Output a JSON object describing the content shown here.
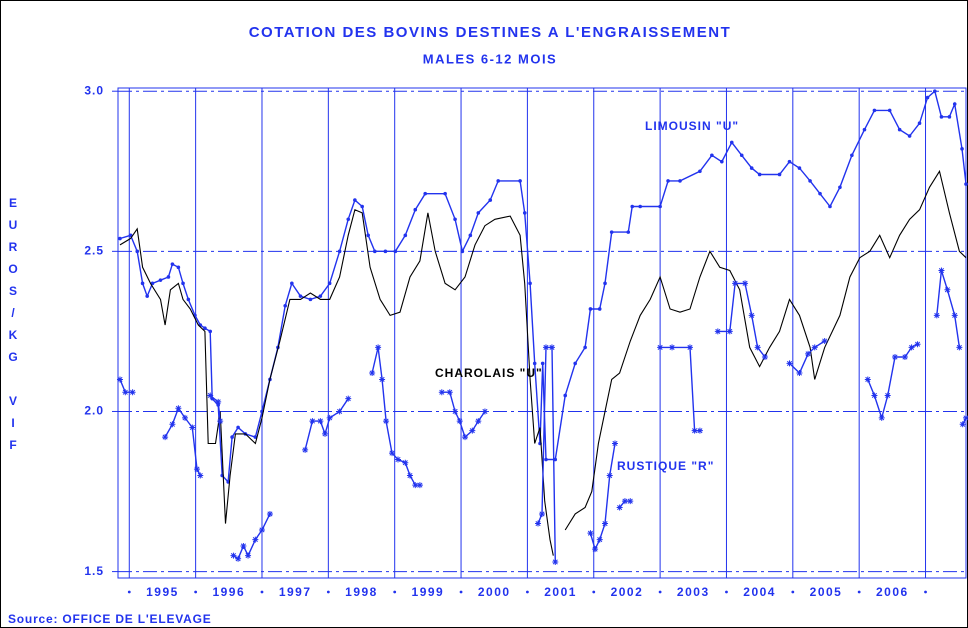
{
  "chart_data": {
    "type": "line",
    "title": "COTATION DES BOVINS DESTINES A L'ENGRAISSEMENT",
    "subtitle": "MALES 6-12 MOIS",
    "y_label": "EUROS/KG VIF",
    "source": "Source: OFFICE DE L'ELEVAGE",
    "xlim": [
      1994.83,
      2007.61
    ],
    "ylim": [
      1.48,
      3.01
    ],
    "yticks": [
      1.5,
      {
        "value": 2,
        "label": "2.0"
      },
      2.5,
      {
        "value": 3,
        "label": "3.0"
      }
    ],
    "xticks": [
      {
        "value": 1995.5,
        "label": "1995"
      },
      {
        "value": 1996.5,
        "label": "1996"
      },
      {
        "value": 1997.5,
        "label": "1997"
      },
      {
        "value": 1998.5,
        "label": "1998"
      },
      {
        "value": 1999.5,
        "label": "1999"
      },
      {
        "value": 2000.5,
        "label": "2000"
      },
      {
        "value": 2001.5,
        "label": "2001"
      },
      {
        "value": 2002.5,
        "label": "2002"
      },
      {
        "value": 2003.5,
        "label": "2003"
      },
      {
        "value": 2004.5,
        "label": "2004"
      },
      {
        "value": 2005.5,
        "label": "2005"
      },
      {
        "value": 2006.5,
        "label": "2006"
      }
    ],
    "xgrid": [
      1995,
      1996,
      1997,
      1998,
      1999,
      2000,
      2001,
      2002,
      2003,
      2004,
      2005,
      2006,
      2007
    ],
    "grid": true,
    "series": [
      {
        "name": "LIMOUSIN \"U\"",
        "color": "#2233ee",
        "marker": "dot",
        "x": [
          1994.86,
          1995.02,
          1995.12,
          1995.2,
          1995.27,
          1995.35,
          1995.47,
          1995.59,
          1995.65,
          1995.74,
          1995.81,
          1995.89,
          1995.99,
          1996.07,
          1996.14,
          1996.22,
          1996.25,
          1996.34,
          1996.4,
          1996.49,
          1996.55,
          1996.64,
          1996.75,
          1996.9,
          1997.0,
          1997.12,
          1997.24,
          1997.35,
          1997.45,
          1997.58,
          1997.73,
          1997.88,
          1998.02,
          1998.17,
          1998.3,
          1998.4,
          1998.51,
          1998.6,
          1998.7,
          1998.86,
          1999.01,
          1999.16,
          1999.31,
          1999.46,
          1999.76,
          1999.91,
          2000.02,
          2000.14,
          2000.26,
          2000.44,
          2000.56,
          2000.89,
          2000.96,
          2001.04,
          2001.11,
          2001.19,
          2001.23,
          2001.28,
          2001.42,
          2001.57,
          2001.72,
          2001.87,
          2001.95,
          2002.09,
          2002.17,
          2002.27,
          2002.52,
          2002.58,
          2002.7,
          2003.0,
          2003.12,
          2003.3,
          2003.6,
          2003.78,
          2003.93,
          2004.08,
          2004.23,
          2004.38,
          2004.5,
          2004.8,
          2004.95,
          2005.1,
          2005.26,
          2005.41,
          2005.56,
          2005.71,
          2005.89,
          2006.08,
          2006.23,
          2006.46,
          2006.61,
          2006.76,
          2006.91,
          2007.03,
          2007.14,
          2007.24,
          2007.36,
          2007.44,
          2007.55,
          2007.61
        ],
        "values": [
          2.54,
          2.55,
          2.5,
          2.4,
          2.36,
          2.4,
          2.41,
          2.42,
          2.46,
          2.45,
          2.4,
          2.35,
          2.3,
          2.27,
          2.26,
          2.25,
          2.04,
          2.02,
          1.8,
          1.78,
          1.92,
          1.95,
          1.93,
          1.92,
          2.0,
          2.1,
          2.2,
          2.33,
          2.4,
          2.36,
          2.35,
          2.36,
          2.4,
          2.5,
          2.6,
          2.66,
          2.64,
          2.55,
          2.5,
          2.5,
          2.5,
          2.55,
          2.63,
          2.68,
          2.68,
          2.6,
          2.5,
          2.55,
          2.62,
          2.66,
          2.72,
          2.72,
          2.62,
          2.4,
          2.15,
          1.9,
          2.15,
          1.85,
          1.85,
          2.05,
          2.15,
          2.2,
          2.32,
          2.32,
          2.4,
          2.56,
          2.56,
          2.64,
          2.64,
          2.64,
          2.72,
          2.72,
          2.75,
          2.8,
          2.78,
          2.84,
          2.8,
          2.76,
          2.74,
          2.74,
          2.78,
          2.76,
          2.72,
          2.68,
          2.64,
          2.7,
          2.8,
          2.88,
          2.94,
          2.94,
          2.88,
          2.86,
          2.9,
          2.98,
          3.0,
          2.92,
          2.92,
          2.96,
          2.82,
          2.71
        ]
      },
      {
        "name": "CHAROLAIS \"U\"",
        "color": "#000000",
        "marker": "none",
        "x": [
          1994.86,
          1995.02,
          1995.12,
          1995.2,
          1995.32,
          1995.47,
          1995.54,
          1995.62,
          1995.74,
          1995.81,
          1995.92,
          1996.04,
          1996.14,
          1996.19,
          1996.3,
          1996.37,
          1996.45,
          1996.52,
          1996.6,
          1996.75,
          1996.9,
          1997.0,
          1997.12,
          1997.27,
          1997.42,
          1997.58,
          1997.73,
          1997.88,
          1998.02,
          1998.17,
          1998.3,
          1998.4,
          1998.51,
          1998.63,
          1998.78,
          1998.93,
          1999.08,
          1999.23,
          1999.38,
          1999.5,
          1999.61,
          1999.76,
          1999.91,
          2000.06,
          2000.21,
          2000.36,
          2000.51,
          2000.74,
          2000.89,
          2000.96,
          2001.04,
          2001.11,
          2001.19,
          2001.26,
          2001.34,
          2001.39,
          null,
          2001.57,
          2001.72,
          2001.87,
          2001.97,
          2002.07,
          2002.17,
          2002.27,
          2002.39,
          2002.55,
          2002.7,
          2002.85,
          2003.0,
          2003.15,
          2003.3,
          2003.45,
          2003.6,
          2003.75,
          2003.9,
          2004.05,
          2004.2,
          2004.35,
          2004.5,
          2004.65,
          2004.8,
          2004.95,
          2005.1,
          2005.26,
          2005.33,
          2005.48,
          2005.71,
          2005.86,
          2006.01,
          2006.16,
          2006.31,
          2006.46,
          2006.61,
          2006.76,
          2006.91,
          2007.06,
          2007.21,
          2007.36,
          2007.51,
          2007.61
        ],
        "values": [
          2.52,
          2.54,
          2.57,
          2.45,
          2.4,
          2.35,
          2.27,
          2.38,
          2.4,
          2.35,
          2.32,
          2.27,
          2.25,
          1.9,
          1.9,
          2.0,
          1.65,
          1.8,
          1.93,
          1.93,
          1.9,
          1.98,
          2.1,
          2.22,
          2.35,
          2.35,
          2.37,
          2.35,
          2.35,
          2.42,
          2.55,
          2.63,
          2.62,
          2.45,
          2.35,
          2.3,
          2.31,
          2.42,
          2.47,
          2.62,
          2.5,
          2.4,
          2.38,
          2.42,
          2.52,
          2.58,
          2.6,
          2.61,
          2.55,
          2.4,
          2.1,
          1.9,
          1.95,
          1.72,
          1.6,
          1.55,
          null,
          1.63,
          1.68,
          1.7,
          1.75,
          1.9,
          2.0,
          2.1,
          2.12,
          2.22,
          2.3,
          2.35,
          2.42,
          2.32,
          2.31,
          2.32,
          2.42,
          2.5,
          2.45,
          2.44,
          2.38,
          2.2,
          2.14,
          2.2,
          2.25,
          2.35,
          2.3,
          2.2,
          2.1,
          2.2,
          2.3,
          2.42,
          2.48,
          2.5,
          2.55,
          2.48,
          2.55,
          2.6,
          2.63,
          2.7,
          2.75,
          2.62,
          2.5,
          2.48
        ]
      },
      {
        "name": "RUSTIQUE \"R\"",
        "color": "#2233ee",
        "marker": "star",
        "x": [
          1994.86,
          1994.94,
          1995.05,
          null,
          1995.54,
          1995.65,
          1995.74,
          1995.84,
          1995.95,
          1996.02,
          1996.07,
          null,
          1996.22,
          1996.34,
          1996.37,
          null,
          1996.57,
          1996.64,
          1996.72,
          1996.79,
          1996.9,
          1997.0,
          1997.12,
          null,
          1997.65,
          1997.76,
          1997.88,
          1997.95,
          1998.02,
          1998.17,
          1998.3,
          null,
          1998.66,
          1998.75,
          1998.81,
          1998.87,
          1998.96,
          1999.05,
          1999.16,
          1999.23,
          1999.31,
          1999.38,
          null,
          1999.71,
          1999.83,
          1999.91,
          1999.98,
          2000.06,
          2000.17,
          2000.26,
          2000.36,
          null,
          2001.16,
          2001.22,
          2001.28,
          2001.37,
          2001.42,
          null,
          2001.95,
          2002.02,
          2002.09,
          2002.17,
          2002.24,
          2002.32,
          null,
          2002.39,
          2002.47,
          2002.55,
          null,
          2003.0,
          2003.18,
          2003.45,
          2003.52,
          2003.6,
          null,
          2003.87,
          2004.05,
          2004.13,
          2004.28,
          2004.38,
          2004.47,
          2004.58,
          null,
          2004.95,
          2005.1,
          2005.23,
          2005.33,
          2005.48,
          null,
          2006.13,
          2006.23,
          2006.34,
          2006.43,
          2006.54,
          2006.69,
          2006.79,
          2006.88,
          null,
          2007.17,
          2007.24,
          2007.33,
          2007.44,
          2007.51,
          null,
          2007.56,
          2007.61
        ],
        "values": [
          2.1,
          2.06,
          2.06,
          null,
          1.92,
          1.96,
          2.01,
          1.98,
          1.95,
          1.82,
          1.8,
          null,
          2.05,
          2.03,
          1.97,
          null,
          1.55,
          1.54,
          1.58,
          1.55,
          1.6,
          1.63,
          1.68,
          null,
          1.88,
          1.97,
          1.97,
          1.93,
          1.98,
          2.0,
          2.04,
          null,
          2.12,
          2.2,
          2.1,
          1.97,
          1.87,
          1.85,
          1.84,
          1.8,
          1.77,
          1.77,
          null,
          2.06,
          2.06,
          2.0,
          1.97,
          1.92,
          1.94,
          1.97,
          2.0,
          null,
          1.65,
          1.68,
          2.2,
          2.2,
          1.53,
          null,
          1.62,
          1.57,
          1.6,
          1.65,
          1.8,
          1.9,
          null,
          1.7,
          1.72,
          1.72,
          null,
          2.2,
          2.2,
          2.2,
          1.94,
          1.94,
          null,
          2.25,
          2.25,
          2.4,
          2.4,
          2.3,
          2.2,
          2.17,
          null,
          2.15,
          2.12,
          2.18,
          2.2,
          2.22,
          null,
          2.1,
          2.05,
          1.98,
          2.05,
          2.17,
          2.17,
          2.2,
          2.21,
          null,
          2.3,
          2.44,
          2.38,
          2.3,
          2.2,
          null,
          1.96,
          1.98
        ]
      }
    ]
  }
}
